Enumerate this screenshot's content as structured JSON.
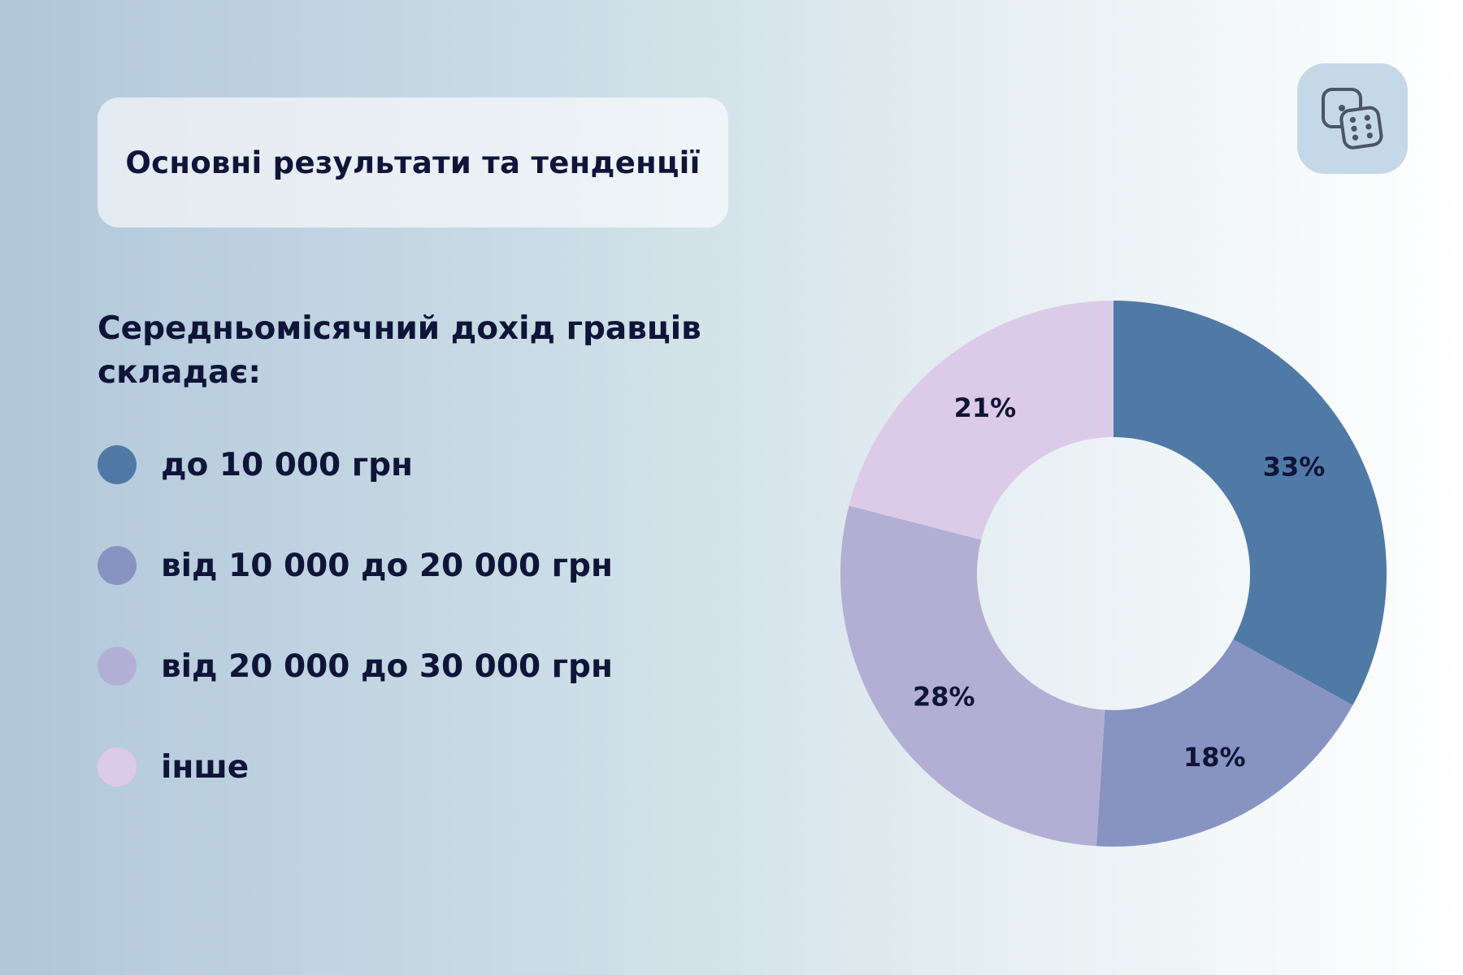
{
  "header": {
    "title": "Основні результати та тенденції"
  },
  "logo": {
    "icon": "dice-icon",
    "color": "#4a5566"
  },
  "subtitle": "Середньомісячний дохід гравців складає:",
  "chart_data": {
    "type": "pie",
    "donut": true,
    "categories": [
      "до 10 000 грн",
      "від 10 000 до 20 000 грн",
      "від 20 000 до 30 000 грн",
      "інше"
    ],
    "values": [
      33,
      18,
      28,
      21
    ],
    "labels": [
      "33%",
      "18%",
      "28%",
      "21%"
    ],
    "colors": [
      "#507aa6",
      "#8794c2",
      "#b3afd4",
      "#dccbe8"
    ],
    "start_angle": "top",
    "direction": "clockwise",
    "legend_position": "left"
  }
}
